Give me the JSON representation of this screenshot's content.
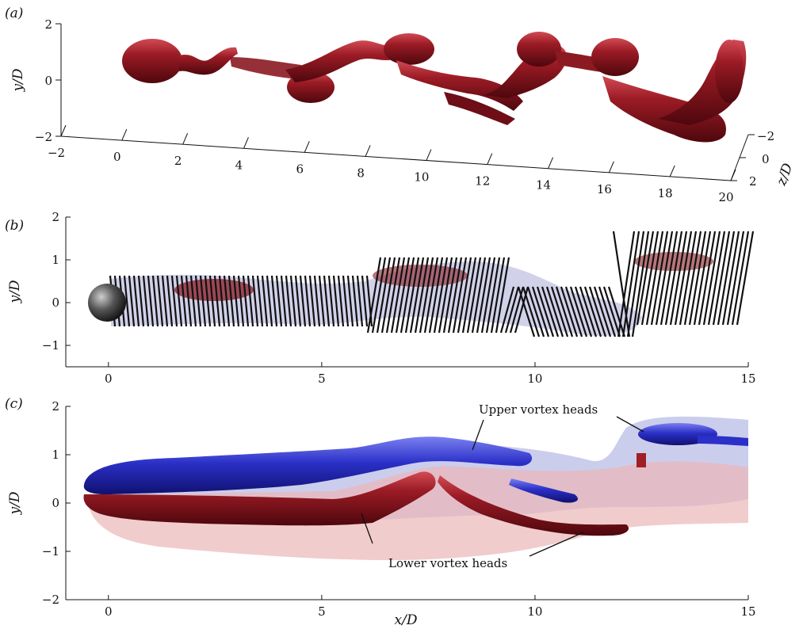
{
  "figure": {
    "panel_labels": [
      "(a)",
      "(b)",
      "(c)"
    ],
    "annotations": {
      "upper": "Upper vortex heads",
      "lower": "Lower vortex heads"
    }
  },
  "chart_data": [
    {
      "type": "3d-isosurface",
      "panel": "(a)",
      "ylabel": "y/D",
      "zlabel": "z/D",
      "x_ticks": [
        "−2",
        "0",
        "2",
        "4",
        "6",
        "8",
        "10",
        "12",
        "14",
        "16",
        "18",
        "20"
      ],
      "y_ticks": [
        "2",
        "0",
        "−2"
      ],
      "z_ticks": [
        "−2",
        "0",
        "2"
      ],
      "xlim": [
        -2,
        20
      ],
      "ylim": [
        -2,
        2
      ],
      "zlim": [
        -2,
        2
      ],
      "colors": {
        "surface": "#8b1a22"
      }
    },
    {
      "type": "vortex-line-plot",
      "panel": "(b)",
      "ylabel": "y/D",
      "x_ticks": [
        "0",
        "5",
        "10",
        "15"
      ],
      "y_ticks": [
        "2",
        "1",
        "0",
        "−1"
      ],
      "xlim": [
        -1,
        15
      ],
      "ylim": [
        -1.5,
        2
      ],
      "colors": {
        "lines": "#111111",
        "surface": "#8b1a22",
        "envelope": "#9a9ad0"
      }
    },
    {
      "type": "isosurface-side-view",
      "panel": "(c)",
      "xlabel": "x/D",
      "ylabel": "y/D",
      "x_ticks": [
        "0",
        "5",
        "10",
        "15"
      ],
      "y_ticks": [
        "2",
        "1",
        "0",
        "−1",
        "−2"
      ],
      "xlim": [
        -1,
        15
      ],
      "ylim": [
        -2,
        2
      ],
      "colors": {
        "upper": "#2b30c8",
        "lower": "#a01e24",
        "upper_env": "#b5b8e6",
        "lower_env": "#ebb7b7"
      }
    }
  ]
}
